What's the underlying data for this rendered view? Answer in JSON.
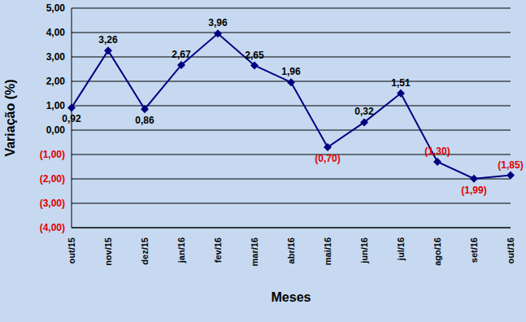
{
  "chart_data": {
    "type": "line",
    "xlabel": "Meses",
    "ylabel": "Variação (%)",
    "categories": [
      "out/15",
      "nov/15",
      "dez/15",
      "jan/16",
      "fev/16",
      "mar/16",
      "abr/16",
      "mai/16",
      "jun/16",
      "jul/16",
      "ago/16",
      "set/16",
      "out/16"
    ],
    "values": [
      0.92,
      3.26,
      0.86,
      2.67,
      3.96,
      2.65,
      1.96,
      -0.7,
      0.32,
      1.51,
      -1.3,
      -1.99,
      -1.85
    ],
    "value_labels": [
      "0,92",
      "3,26",
      "0,86",
      "2,67",
      "3,96",
      "2,65",
      "1,96",
      "(0,70)",
      "0,32",
      "1,51",
      "(1,30)",
      "(1,99)",
      "(1,85)"
    ],
    "color": "#000080",
    "marker": "diamond",
    "data_labels": true,
    "grid": true,
    "ylim": [
      -4,
      5
    ],
    "yticks": [
      {
        "value": 5,
        "label": "5,00"
      },
      {
        "value": 4,
        "label": "4,00"
      },
      {
        "value": 3,
        "label": "3,00"
      },
      {
        "value": 2,
        "label": "2,00"
      },
      {
        "value": 1,
        "label": "1,00"
      },
      {
        "value": 0,
        "label": "0,00"
      },
      {
        "value": -1,
        "label": "(1,00)"
      },
      {
        "value": -2,
        "label": "(2,00)"
      },
      {
        "value": -3,
        "label": "(3,00)"
      },
      {
        "value": -4,
        "label": "(4,00)"
      }
    ]
  }
}
